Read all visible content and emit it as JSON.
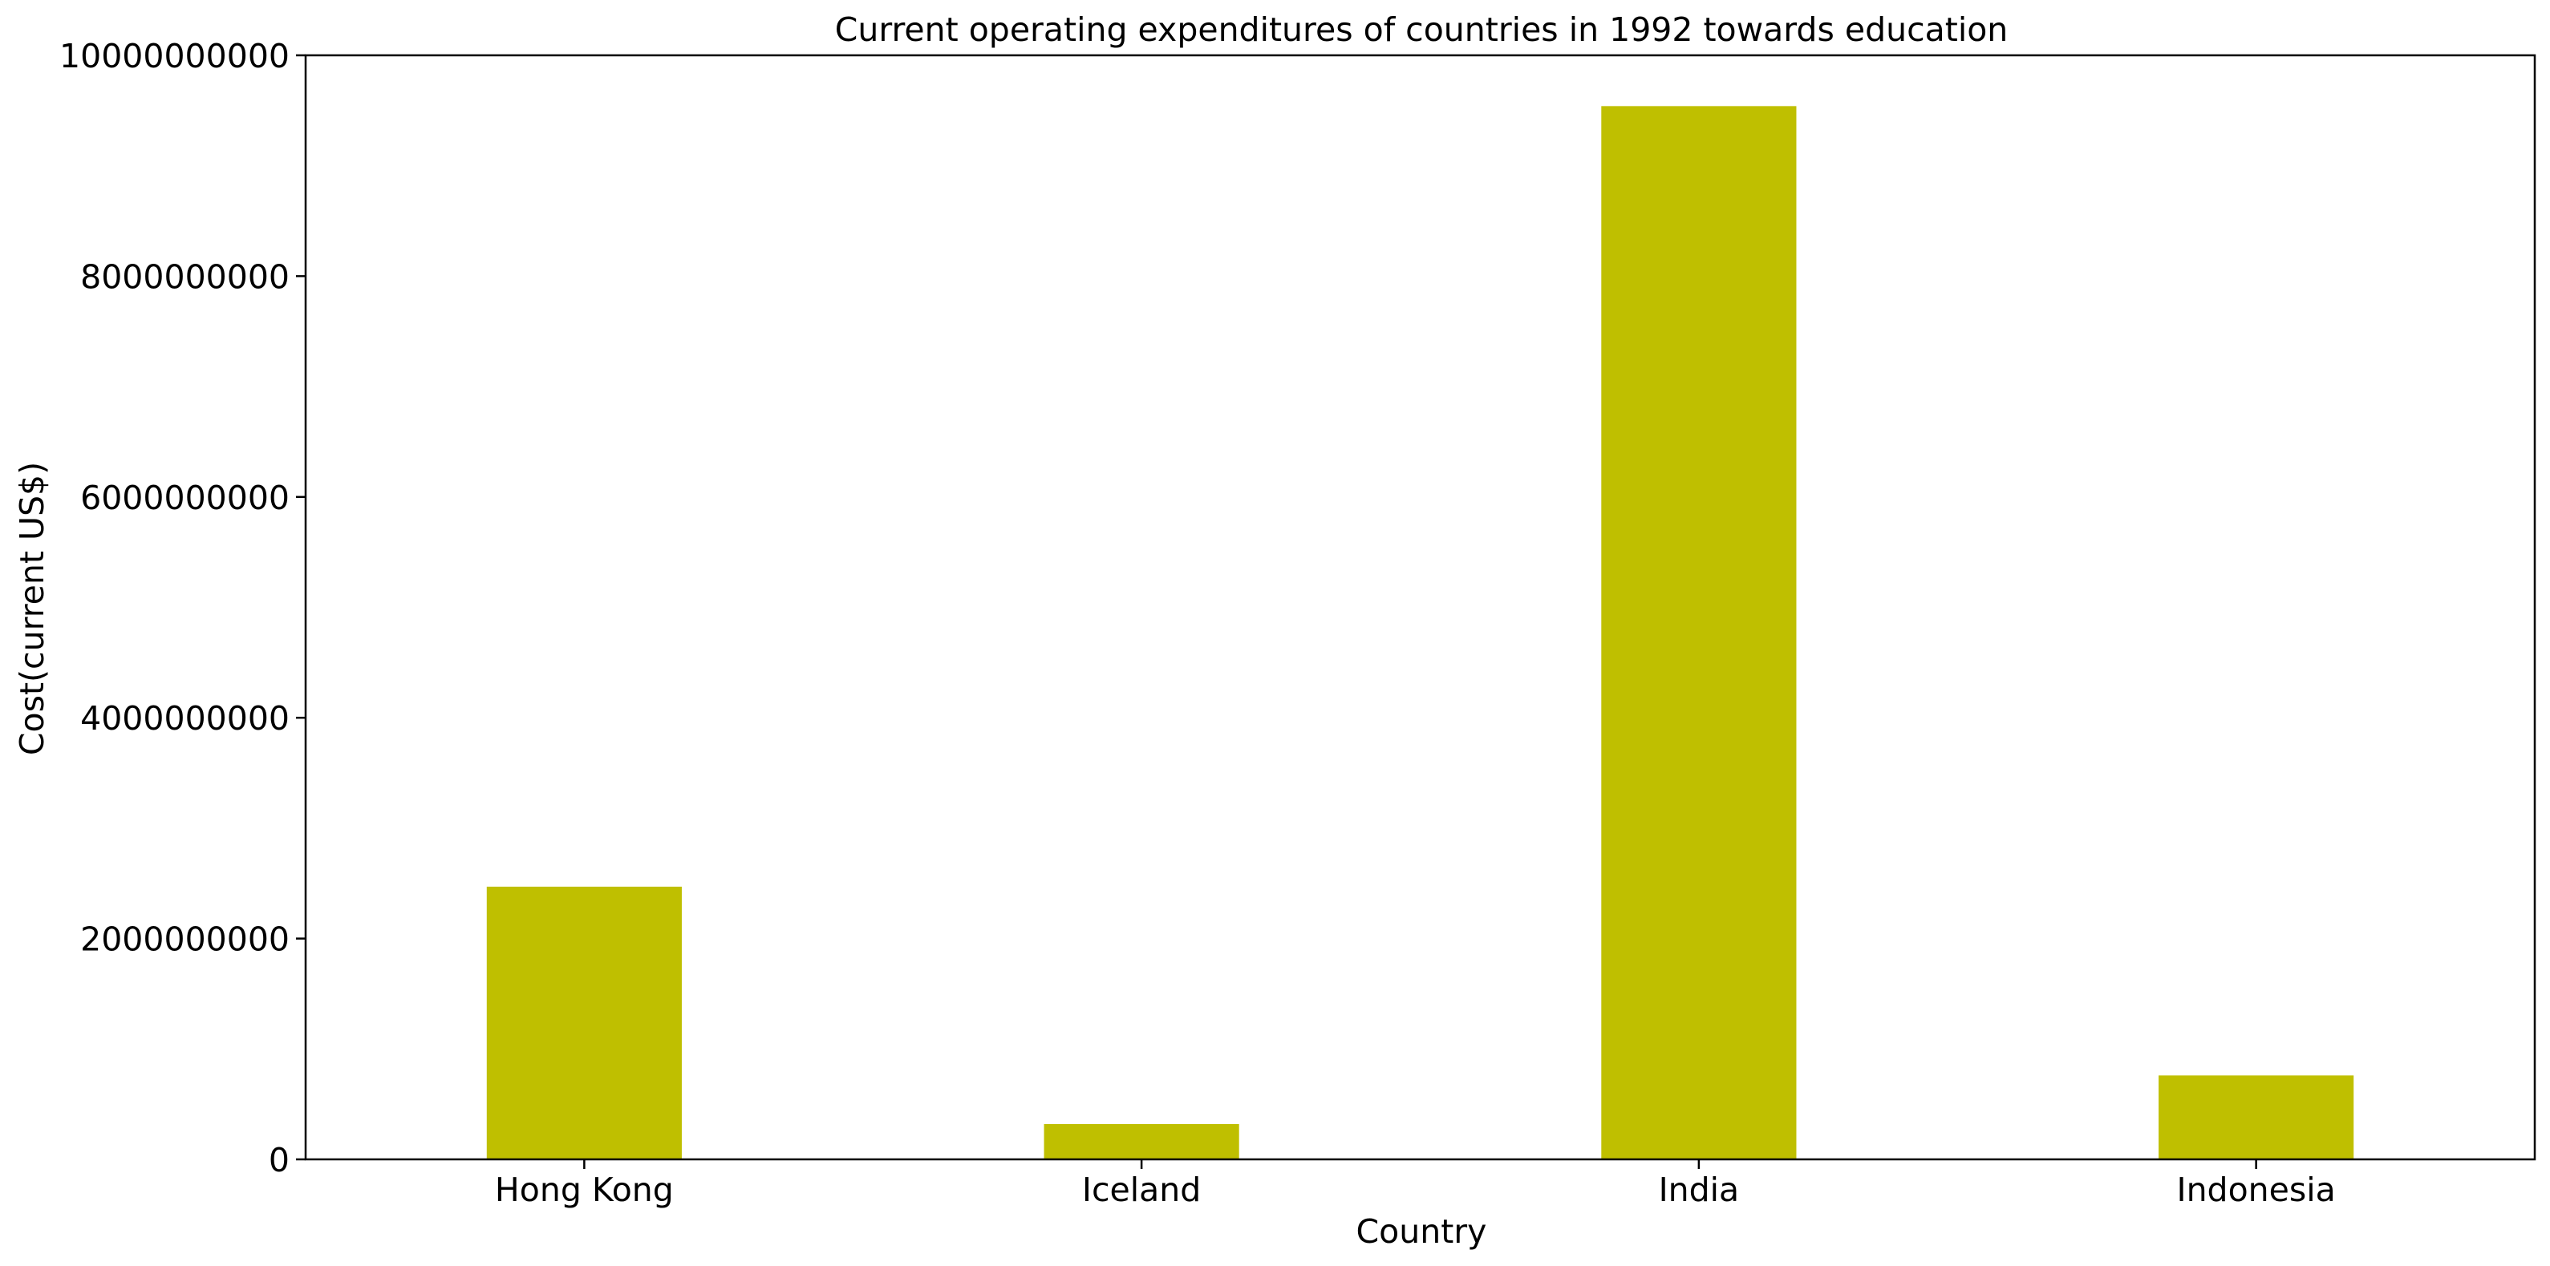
{
  "chart_data": {
    "type": "bar",
    "title": "Current operating expenditures of countries in 1992 towards education",
    "xlabel": "Country",
    "ylabel": "Cost(current US$)",
    "categories": [
      "Hong Kong",
      "Iceland",
      "India",
      "Indonesia"
    ],
    "values": [
      2470000000,
      320000000,
      9540000000,
      760000000
    ],
    "ylim": [
      0,
      10000000000
    ],
    "yticks": [
      0,
      2000000000,
      4000000000,
      6000000000,
      8000000000,
      10000000000
    ],
    "ytick_labels": [
      "0",
      "2000000000",
      "4000000000",
      "6000000000",
      "8000000000",
      "10000000000"
    ],
    "bar_color": "#bfbf00",
    "grid": false,
    "legend": "none"
  }
}
